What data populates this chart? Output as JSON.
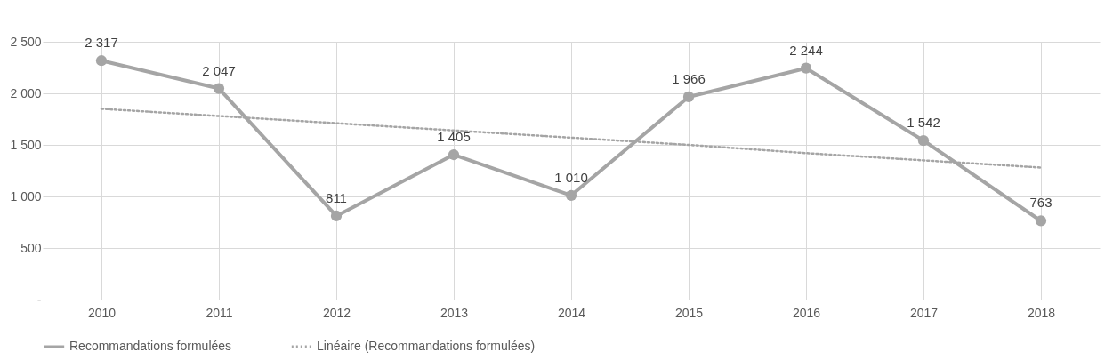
{
  "chart_data": {
    "type": "line",
    "categories": [
      "2010",
      "2011",
      "2012",
      "2013",
      "2014",
      "2015",
      "2016",
      "2017",
      "2018"
    ],
    "series": [
      {
        "name": "Recommandations formulées",
        "color": "#a5a5a5",
        "marker": "circle",
        "line_style": "solid",
        "values": [
          2317,
          2047,
          811,
          1405,
          1010,
          1966,
          2244,
          1542,
          763
        ],
        "value_labels": [
          "2 317",
          "2 047",
          "811",
          "1 405",
          "1 010",
          "1 966",
          "2 244",
          "1 542",
          "763"
        ]
      },
      {
        "name": "Linéaire (Recommandations formulées)",
        "color": "#a5a5a5",
        "marker": "none",
        "line_style": "dotted",
        "values": [
          1850,
          1780,
          1710,
          1640,
          1570,
          1500,
          1420,
          1350,
          1280
        ]
      }
    ],
    "ylim": [
      0,
      2500
    ],
    "yticks": [
      {
        "value": 0,
        "label": "-"
      },
      500,
      {
        "value": 1000,
        "label": "1 000"
      },
      {
        "value": 1500,
        "label": "1 500"
      },
      {
        "value": 2000,
        "label": "2 000"
      },
      {
        "value": 2500,
        "label": "2 500"
      }
    ],
    "grid": true,
    "legend": "bottom"
  }
}
